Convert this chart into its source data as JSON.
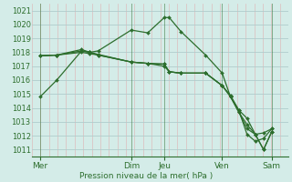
{
  "background_color": "#d4ece8",
  "grid_color_major": "#b0cccc",
  "grid_color_minor": "#ddbcbc",
  "line_color": "#2d6e2d",
  "ylabel_text": "Pression niveau de la mer( hPa )",
  "x_ticks_labels": [
    "Mer",
    "Dim",
    "Jeu",
    "Ven",
    "Sam"
  ],
  "x_ticks_pos": [
    0,
    5.5,
    7.5,
    11,
    14
  ],
  "x_vlines_dark": [
    0,
    5.5,
    7.5,
    11,
    14
  ],
  "xlim": [
    -0.5,
    15.0
  ],
  "ylim": [
    1010.5,
    1021.5
  ],
  "yticks": [
    1011,
    1012,
    1013,
    1014,
    1015,
    1016,
    1017,
    1018,
    1019,
    1020,
    1021
  ],
  "series": [
    {
      "x": [
        0,
        1.0,
        2.5,
        3.0,
        3.5,
        5.5,
        6.5,
        7.5,
        7.8,
        8.5,
        10.0,
        11.0,
        11.5,
        12.0,
        12.5,
        13.0,
        13.5,
        14.0
      ],
      "y": [
        1014.8,
        1016.0,
        1018.1,
        1018.0,
        1018.1,
        1019.6,
        1019.4,
        1020.5,
        1020.5,
        1019.5,
        1017.8,
        1016.5,
        1014.8,
        1013.85,
        1012.1,
        1011.6,
        1011.8,
        1012.5
      ]
    },
    {
      "x": [
        0,
        1.0,
        2.5,
        3.0,
        3.5,
        5.5,
        6.5,
        7.5,
        7.8,
        8.5,
        10.0,
        11.0,
        11.5,
        12.0,
        12.5,
        13.0,
        13.5,
        14.0
      ],
      "y": [
        1017.75,
        1017.8,
        1018.2,
        1018.0,
        1017.8,
        1017.3,
        1017.2,
        1017.15,
        1016.6,
        1016.5,
        1016.5,
        1015.6,
        1014.9,
        1013.85,
        1013.25,
        1012.1,
        1012.2,
        1012.5
      ]
    },
    {
      "x": [
        0,
        1.0,
        2.5,
        3.0,
        3.5,
        5.5,
        6.5,
        7.5,
        7.8,
        8.5,
        10.0,
        11.0,
        11.5,
        12.0,
        12.5,
        13.0,
        13.5,
        14.0
      ],
      "y": [
        1017.75,
        1017.8,
        1018.0,
        1017.9,
        1017.8,
        1017.3,
        1017.2,
        1017.0,
        1016.6,
        1016.5,
        1016.5,
        1015.6,
        1014.85,
        1013.7,
        1012.8,
        1012.1,
        1011.0,
        1012.3
      ]
    },
    {
      "x": [
        0,
        1.0,
        2.5,
        3.0,
        3.5,
        5.5,
        6.5,
        7.5,
        7.8,
        8.5,
        10.0,
        11.0,
        11.5,
        12.0,
        12.5,
        13.0,
        13.5,
        14.0
      ],
      "y": [
        1017.75,
        1017.8,
        1018.1,
        1018.0,
        1017.85,
        1017.3,
        1017.2,
        1017.15,
        1016.6,
        1016.5,
        1016.5,
        1015.6,
        1014.8,
        1013.7,
        1012.5,
        1012.1,
        1011.0,
        1012.3
      ]
    }
  ]
}
